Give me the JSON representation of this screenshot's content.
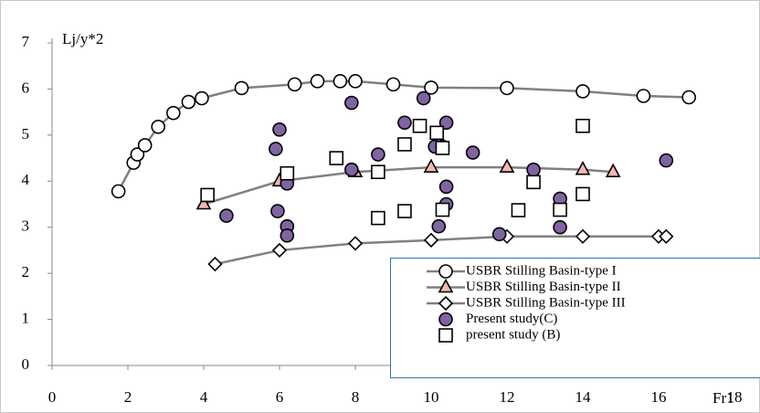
{
  "chart_data": {
    "type": "scatter",
    "y_label": "Lj/y*2",
    "x_label": "Fr1",
    "xlim": [
      0,
      18
    ],
    "xticks": [
      0,
      2,
      4,
      6,
      8,
      10,
      12,
      14,
      16,
      18
    ],
    "ylim": [
      0,
      7
    ],
    "yticks": [
      0,
      1,
      2,
      3,
      4,
      5,
      6,
      7
    ],
    "legend": "lower right",
    "series": [
      {
        "name": "USBR Stilling Basin-type I",
        "marker": "circle",
        "line": true,
        "color": "#808080",
        "fill": "#ffffff",
        "x": [
          1.75,
          2.15,
          2.25,
          2.45,
          2.8,
          3.2,
          3.6,
          3.95,
          5.0,
          6.4,
          7.0,
          7.6,
          8.0,
          9.0,
          10.0,
          12.0,
          14.0,
          15.6,
          16.8
        ],
        "values": [
          3.78,
          4.4,
          4.58,
          4.78,
          5.18,
          5.48,
          5.72,
          5.8,
          6.02,
          6.1,
          6.17,
          6.17,
          6.17,
          6.1,
          6.03,
          6.02,
          5.95,
          5.85,
          5.82
        ]
      },
      {
        "name": "USBR Stilling Basin-type II",
        "marker": "triangle",
        "line": true,
        "color": "#808080",
        "fill": "#f2b8b0",
        "x": [
          4.0,
          6.0,
          8.0,
          10.0,
          12.0,
          14.0,
          14.8
        ],
        "values": [
          3.5,
          4.0,
          4.2,
          4.3,
          4.3,
          4.25,
          4.2
        ]
      },
      {
        "name": "USBR Stilling Basin-type III",
        "marker": "diamond",
        "line": true,
        "color": "#808080",
        "fill": "#ffffff",
        "x": [
          4.3,
          6.0,
          8.0,
          10.0,
          12.0,
          14.0,
          16.0,
          16.2
        ],
        "values": [
          2.2,
          2.5,
          2.65,
          2.72,
          2.8,
          2.8,
          2.8,
          2.8
        ]
      },
      {
        "name": "Present study(C)",
        "marker": "circle",
        "line": false,
        "color": "#000000",
        "fill": "#8064a2",
        "x": [
          4.6,
          5.9,
          6.0,
          5.95,
          6.2,
          6.2,
          6.2,
          7.9,
          7.9,
          8.6,
          9.3,
          9.8,
          10.1,
          10.3,
          10.4,
          10.4,
          10.4,
          10.2,
          11.1,
          11.8,
          12.7,
          13.4,
          13.4,
          16.2
        ],
        "values": [
          3.25,
          4.7,
          5.12,
          3.35,
          3.95,
          3.02,
          2.82,
          5.7,
          4.25,
          4.58,
          5.27,
          5.8,
          4.75,
          4.75,
          5.27,
          3.88,
          3.5,
          3.02,
          4.62,
          2.85,
          4.25,
          3.62,
          3.0,
          4.45
        ]
      },
      {
        "name": "present study (B)",
        "marker": "square",
        "line": false,
        "color": "#000000",
        "fill": "#ffffff",
        "x": [
          4.1,
          6.2,
          7.5,
          8.6,
          8.6,
          9.3,
          9.3,
          9.7,
          10.15,
          10.3,
          10.3,
          12.3,
          12.7,
          13.4,
          14.0,
          14.0
        ],
        "values": [
          3.7,
          4.17,
          4.5,
          4.2,
          3.2,
          4.8,
          3.35,
          5.2,
          5.05,
          4.72,
          3.38,
          3.37,
          3.98,
          3.38,
          5.2,
          3.72
        ]
      }
    ]
  }
}
